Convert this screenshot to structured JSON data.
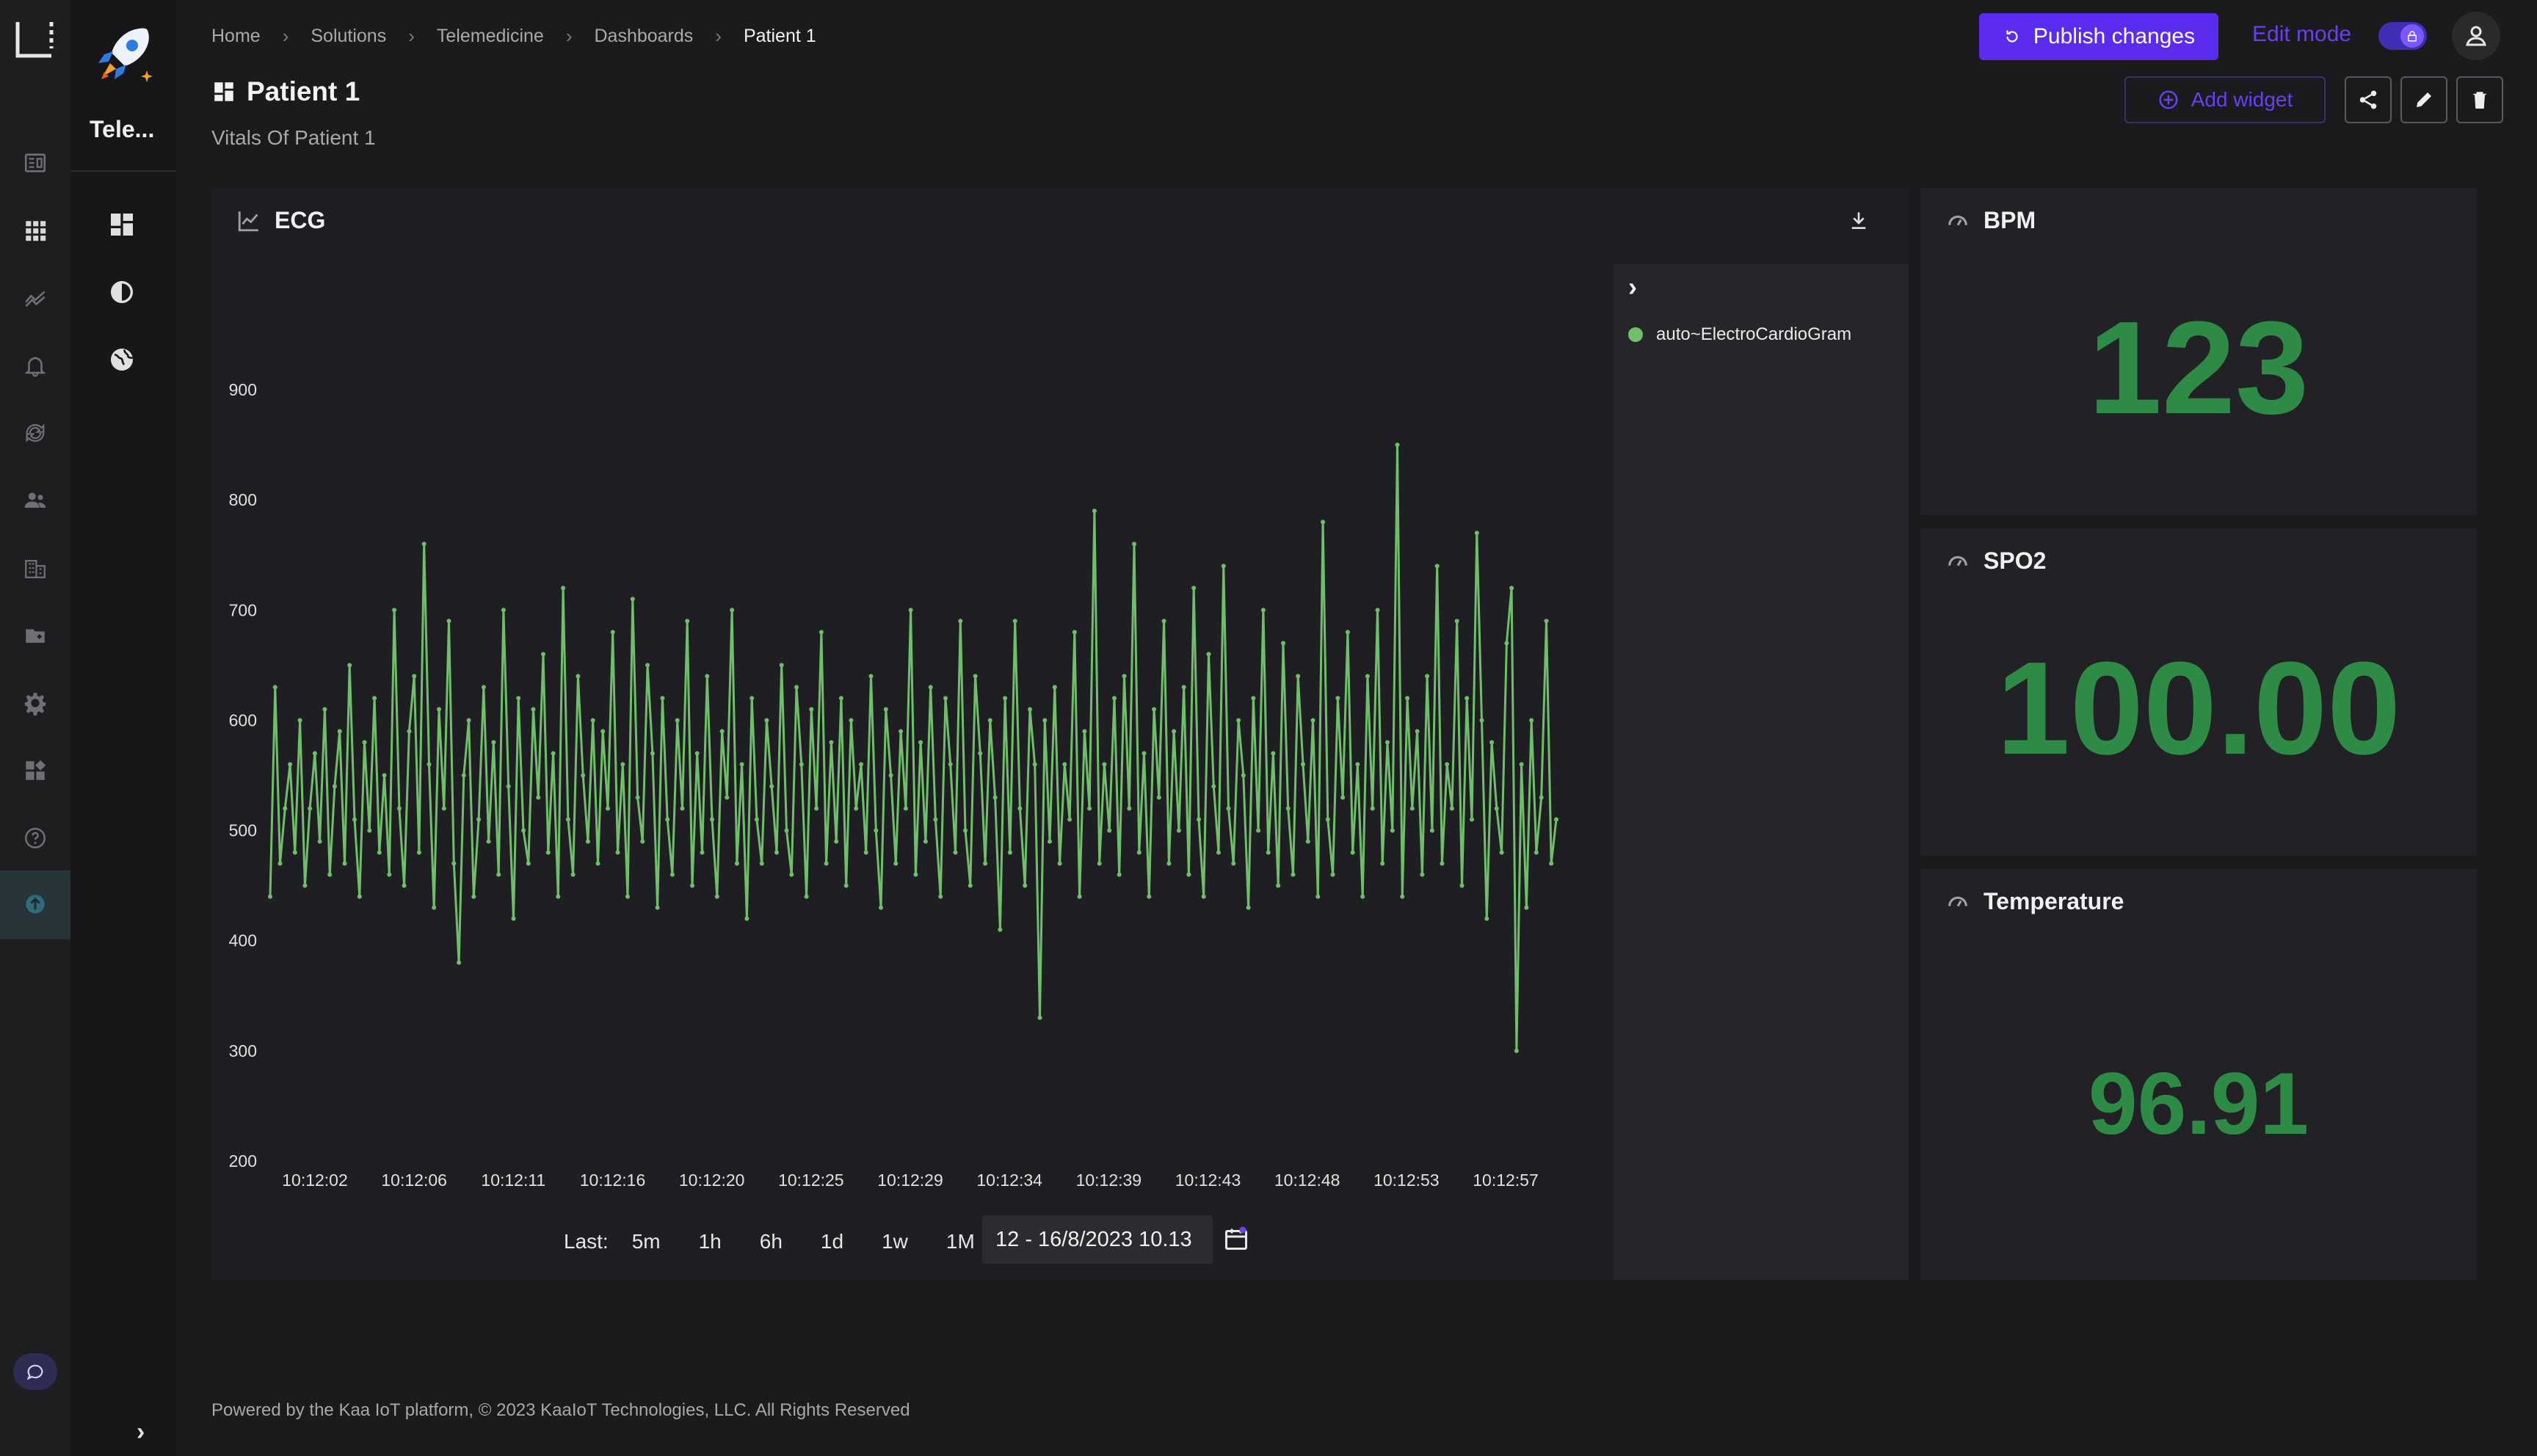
{
  "app": {
    "name": "Tele..."
  },
  "breadcrumb": [
    "Home",
    "Solutions",
    "Telemedicine",
    "Dashboards",
    "Patient 1"
  ],
  "page": {
    "title": "Patient 1",
    "subtitle": "Vitals Of Patient 1"
  },
  "toolbar": {
    "publish_label": "Publish changes",
    "edit_mode_label": "Edit mode",
    "add_widget_label": "Add widget"
  },
  "widgets": {
    "ecg": {
      "title": "ECG",
      "legend_item": "auto~ElectroCardioGram",
      "range_label": "Last:",
      "ranges": [
        "5m",
        "1h",
        "6h",
        "1d",
        "1w",
        "1M"
      ],
      "date_range": "12 - 16/8/2023 10.13"
    },
    "bpm": {
      "title": "BPM",
      "value": "123"
    },
    "spo2": {
      "title": "SPO2",
      "value": "100.00"
    },
    "temperature": {
      "title": "Temperature",
      "value": "96.91"
    }
  },
  "chart_data": {
    "type": "line",
    "title": "ECG",
    "series": [
      {
        "name": "auto~ElectroCardioGram",
        "color": "#6fbf6a"
      }
    ],
    "y_ticks": [
      200,
      300,
      400,
      500,
      600,
      700,
      800,
      900
    ],
    "ylim": [
      200,
      950
    ],
    "x_ticks": [
      "10:12:02",
      "10:12:06",
      "10:12:11",
      "10:12:16",
      "10:12:20",
      "10:12:25",
      "10:12:29",
      "10:12:34",
      "10:12:39",
      "10:12:43",
      "10:12:48",
      "10:12:53",
      "10:12:57"
    ],
    "values": [
      440,
      630,
      470,
      520,
      560,
      480,
      600,
      450,
      520,
      570,
      490,
      610,
      460,
      540,
      590,
      470,
      650,
      510,
      440,
      580,
      500,
      620,
      480,
      550,
      460,
      700,
      520,
      450,
      590,
      640,
      480,
      760,
      560,
      430,
      610,
      520,
      690,
      470,
      380,
      550,
      600,
      440,
      510,
      630,
      490,
      580,
      460,
      700,
      540,
      420,
      620,
      500,
      470,
      610,
      530,
      660,
      480,
      570,
      440,
      720,
      510,
      460,
      640,
      550,
      490,
      600,
      470,
      590,
      520,
      680,
      480,
      560,
      440,
      710,
      530,
      490,
      650,
      570,
      430,
      620,
      510,
      460,
      600,
      520,
      690,
      450,
      570,
      480,
      640,
      510,
      440,
      590,
      530,
      700,
      470,
      560,
      420,
      620,
      510,
      470,
      600,
      540,
      480,
      650,
      500,
      460,
      630,
      560,
      440,
      610,
      520,
      680,
      470,
      580,
      490,
      620,
      450,
      600,
      520,
      560,
      480,
      640,
      500,
      430,
      610,
      550,
      470,
      590,
      520,
      700,
      460,
      580,
      490,
      630,
      510,
      440,
      620,
      560,
      480,
      690,
      500,
      450,
      640,
      570,
      470,
      600,
      530,
      410,
      620,
      480,
      690,
      520,
      450,
      610,
      560,
      330,
      600,
      490,
      630,
      470,
      560,
      510,
      680,
      440,
      590,
      520,
      790,
      470,
      560,
      500,
      620,
      460,
      640,
      520,
      760,
      480,
      570,
      440,
      610,
      530,
      690,
      470,
      590,
      500,
      630,
      460,
      720,
      510,
      440,
      660,
      540,
      480,
      740,
      520,
      470,
      600,
      550,
      430,
      620,
      500,
      700,
      480,
      570,
      450,
      670,
      520,
      460,
      640,
      560,
      490,
      600,
      440,
      780,
      510,
      460,
      620,
      530,
      680,
      480,
      560,
      440,
      640,
      520,
      700,
      470,
      580,
      500,
      850,
      440,
      620,
      520,
      590,
      460,
      640,
      500,
      740,
      470,
      560,
      520,
      690,
      450,
      620,
      510,
      770,
      600,
      420,
      580,
      520,
      480,
      670,
      720,
      300,
      560,
      430,
      600,
      480,
      530,
      690,
      470,
      510
    ]
  }
}
